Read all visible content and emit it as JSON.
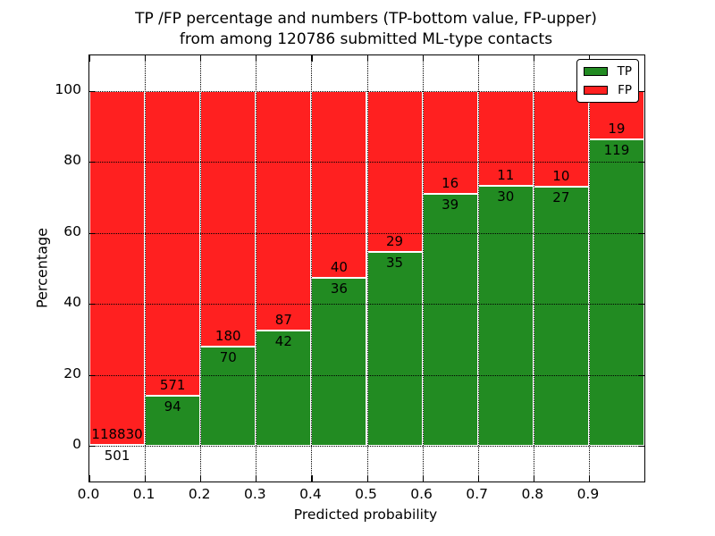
{
  "chart_data": {
    "type": "bar",
    "subtype": "stacked-normalized-percentage",
    "title_line1": "TP /FP percentage and numbers (TP-bottom value, FP-upper)",
    "title_line2": "from among 120786 submitted ML-type contacts",
    "total_submitted_contacts": 120786,
    "xlabel": "Predicted probability",
    "ylabel": "Percentage",
    "bins": {
      "start": 0.0,
      "width": 0.1,
      "count": 10
    },
    "categories": [
      "0.0-0.1",
      "0.1-0.2",
      "0.2-0.3",
      "0.3-0.4",
      "0.4-0.5",
      "0.5-0.6",
      "0.6-0.7",
      "0.7-0.8",
      "0.8-0.9",
      "0.9-1.0"
    ],
    "series": [
      {
        "name": "TP",
        "color": "#228b22",
        "values": [
          501,
          94,
          70,
          42,
          36,
          35,
          39,
          30,
          27,
          119
        ]
      },
      {
        "name": "FP",
        "color": "#ff2020",
        "values": [
          118830,
          571,
          180,
          87,
          40,
          29,
          16,
          11,
          10,
          19
        ]
      }
    ],
    "stack_normalized_to": 100,
    "xlim": [
      0.0,
      1.0
    ],
    "ylim": [
      -10,
      110
    ],
    "grid": "dotted",
    "x_ticks": [
      {
        "v": 0.0,
        "label": "0.0"
      },
      {
        "v": 0.1,
        "label": "0.1"
      },
      {
        "v": 0.2,
        "label": "0.2"
      },
      {
        "v": 0.3,
        "label": "0.3"
      },
      {
        "v": 0.4,
        "label": "0.4"
      },
      {
        "v": 0.5,
        "label": "0.5"
      },
      {
        "v": 0.6,
        "label": "0.6"
      },
      {
        "v": 0.7,
        "label": "0.7"
      },
      {
        "v": 0.8,
        "label": "0.8"
      },
      {
        "v": 0.9,
        "label": "0.9"
      }
    ],
    "y_ticks": [
      {
        "v": 0,
        "label": "0"
      },
      {
        "v": 20,
        "label": "20"
      },
      {
        "v": 40,
        "label": "40"
      },
      {
        "v": 60,
        "label": "60"
      },
      {
        "v": 80,
        "label": "80"
      },
      {
        "v": 100,
        "label": "100"
      }
    ],
    "legend": {
      "position": "upper-right",
      "entries": [
        {
          "label": "TP",
          "color": "#228b22"
        },
        {
          "label": "FP",
          "color": "#ff2020"
        }
      ]
    }
  }
}
